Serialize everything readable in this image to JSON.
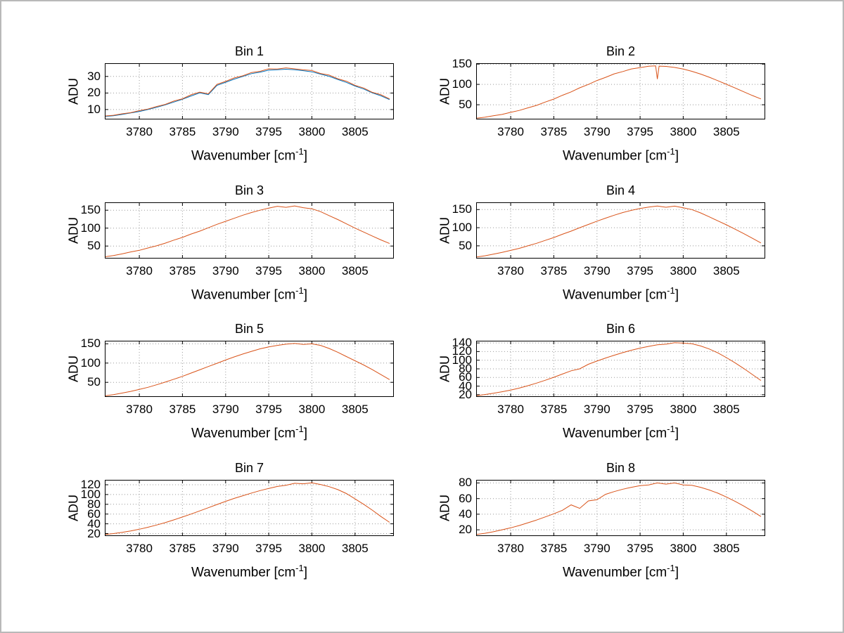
{
  "figure": {
    "background": "#ffffff",
    "border_color": "#b9b9b9"
  },
  "chart_data": [
    {
      "type": "line",
      "title": "Bin 1",
      "ylabel": "ADU",
      "xlabel_pre": "Wavenumber [cm",
      "xlabel_sup": "-1",
      "xlabel_post": "]",
      "xlim": [
        3776,
        3809.5
      ],
      "ylim": [
        4,
        38
      ],
      "x_ticks": [
        3780,
        3785,
        3790,
        3795,
        3800,
        3805
      ],
      "y_ticks": [
        10,
        20,
        30
      ],
      "grid": true,
      "legend": "none",
      "x": [
        3776,
        3777,
        3778,
        3779,
        3780,
        3781,
        3782,
        3783,
        3784,
        3785,
        3786,
        3787,
        3788,
        3789,
        3790,
        3791,
        3792,
        3793,
        3794,
        3795,
        3796,
        3797,
        3798,
        3799,
        3800,
        3801,
        3802,
        3803,
        3804,
        3805,
        3806,
        3807,
        3808,
        3809
      ],
      "series": [
        {
          "name": "line-1",
          "color": "#0072BD",
          "y": [
            5.8,
            6.2,
            7.0,
            7.9,
            8.8,
            10.0,
            11.3,
            12.8,
            14.5,
            16.2,
            18.2,
            20.1,
            19.0,
            24.6,
            26.5,
            28.4,
            30.0,
            31.7,
            32.6,
            33.8,
            34.1,
            34.4,
            34.1,
            33.5,
            32.8,
            31.4,
            30.1,
            28.2,
            26.4,
            24.2,
            22.4,
            20.1,
            18.3,
            16.0
          ]
        },
        {
          "name": "line-2",
          "color": "#D95319",
          "y": [
            6.1,
            6.5,
            7.4,
            8.1,
            9.3,
            10.3,
            11.8,
            13.1,
            15.1,
            16.5,
            18.9,
            20.5,
            19.5,
            25.2,
            27.0,
            29.1,
            30.4,
            32.4,
            33.1,
            34.6,
            34.5,
            35.2,
            34.6,
            34.0,
            33.6,
            31.8,
            30.8,
            28.6,
            27.1,
            24.6,
            23.0,
            20.4,
            18.9,
            16.4
          ]
        }
      ]
    },
    {
      "type": "line",
      "title": "Bin 2",
      "ylabel": "ADU",
      "xlabel_pre": "Wavenumber [cm",
      "xlabel_sup": "-1",
      "xlabel_post": "]",
      "xlim": [
        3776,
        3809.5
      ],
      "ylim": [
        14,
        152
      ],
      "x_ticks": [
        3780,
        3785,
        3790,
        3795,
        3800,
        3805
      ],
      "y_ticks": [
        50,
        100,
        150
      ],
      "grid": true,
      "legend": "none",
      "x": [
        3776,
        3777,
        3778,
        3779,
        3780,
        3781,
        3782,
        3783,
        3784,
        3785,
        3786,
        3787,
        3788,
        3789,
        3790,
        3791,
        3792,
        3793,
        3794,
        3795,
        3796,
        3796.8,
        3797,
        3797.2,
        3798,
        3799,
        3800,
        3801,
        3802,
        3803,
        3804,
        3805,
        3806,
        3807,
        3808,
        3809
      ],
      "series": [
        {
          "name": "line-1",
          "color": "#D95319",
          "y": [
            17,
            19.4,
            23.1,
            26.2,
            31.4,
            36,
            42.5,
            48.5,
            56.6,
            64,
            73.3,
            81.6,
            91.6,
            99.9,
            109.6,
            117.3,
            125.9,
            131.7,
            138.1,
            141.2,
            144.6,
            145.5,
            113,
            145,
            144.2,
            141.7,
            137.6,
            132.1,
            125.4,
            117.7,
            109.2,
            100.3,
            91.2,
            82,
            72.9,
            64.3
          ]
        }
      ]
    },
    {
      "type": "line",
      "title": "Bin 3",
      "ylabel": "ADU",
      "xlabel_pre": "Wavenumber [cm",
      "xlabel_sup": "-1",
      "xlabel_post": "]",
      "xlim": [
        3776,
        3809.5
      ],
      "ylim": [
        15,
        172
      ],
      "x_ticks": [
        3780,
        3785,
        3790,
        3795,
        3800,
        3805
      ],
      "y_ticks": [
        50,
        100,
        150
      ],
      "grid": true,
      "legend": "none",
      "x": [
        3776,
        3777,
        3778,
        3779,
        3780,
        3781,
        3782,
        3783,
        3784,
        3785,
        3786,
        3787,
        3788,
        3789,
        3790,
        3791,
        3792,
        3793,
        3794,
        3795,
        3796,
        3797,
        3798,
        3799,
        3800,
        3801,
        3802,
        3803,
        3804,
        3805,
        3806,
        3807,
        3808,
        3809
      ],
      "series": [
        {
          "name": "line-1",
          "color": "#D95319",
          "y": [
            20,
            23.5,
            28,
            33.5,
            38,
            44.5,
            50.5,
            58,
            66.5,
            74,
            83.5,
            91.5,
            101,
            110.5,
            119,
            127.5,
            136,
            143.5,
            150,
            156,
            161,
            158,
            162,
            157,
            154,
            146,
            135,
            124,
            112,
            100,
            89,
            78,
            67,
            57
          ]
        }
      ]
    },
    {
      "type": "line",
      "title": "Bin 4",
      "ylabel": "ADU",
      "xlabel_pre": "Wavenumber [cm",
      "xlabel_sup": "-1",
      "xlabel_post": "]",
      "xlim": [
        3776,
        3809.5
      ],
      "ylim": [
        15,
        170
      ],
      "x_ticks": [
        3780,
        3785,
        3790,
        3795,
        3800,
        3805
      ],
      "y_ticks": [
        50,
        100,
        150
      ],
      "grid": true,
      "legend": "none",
      "x": [
        3776,
        3777,
        3778,
        3779,
        3780,
        3781,
        3782,
        3783,
        3784,
        3785,
        3786,
        3787,
        3788,
        3789,
        3790,
        3791,
        3792,
        3793,
        3794,
        3795,
        3796,
        3797,
        3798,
        3799,
        3800,
        3801,
        3802,
        3803,
        3804,
        3805,
        3806,
        3807,
        3808,
        3809
      ],
      "series": [
        {
          "name": "line-1",
          "color": "#D95319",
          "y": [
            19,
            22.5,
            27,
            32,
            37.5,
            43,
            50,
            57,
            65,
            73,
            82,
            90.5,
            100,
            109,
            118,
            126.5,
            134.5,
            142,
            148,
            153,
            157,
            160,
            156.5,
            159.5,
            155,
            150,
            141,
            130,
            119,
            108,
            96,
            84,
            71,
            58
          ]
        }
      ]
    },
    {
      "type": "line",
      "title": "Bin 5",
      "ylabel": "ADU",
      "xlabel_pre": "Wavenumber [cm",
      "xlabel_sup": "-1",
      "xlabel_post": "]",
      "xlim": [
        3776,
        3809.5
      ],
      "ylim": [
        12,
        158
      ],
      "x_ticks": [
        3780,
        3785,
        3790,
        3795,
        3800,
        3805
      ],
      "y_ticks": [
        50,
        100,
        150
      ],
      "grid": true,
      "legend": "none",
      "x": [
        3776,
        3777,
        3778,
        3779,
        3780,
        3781,
        3782,
        3783,
        3784,
        3785,
        3786,
        3787,
        3788,
        3789,
        3790,
        3791,
        3792,
        3793,
        3794,
        3795,
        3796,
        3797,
        3798,
        3799,
        3800,
        3801,
        3802,
        3803,
        3804,
        3805,
        3806,
        3807,
        3808,
        3809
      ],
      "series": [
        {
          "name": "line-1",
          "color": "#D95319",
          "y": [
            15,
            18,
            22,
            26.5,
            31.5,
            37,
            43.5,
            50.5,
            58,
            65.5,
            74,
            82.5,
            91,
            99.5,
            108,
            116,
            123.5,
            130.5,
            137,
            142,
            146,
            149,
            151,
            148.5,
            150,
            146,
            138,
            128,
            117,
            106,
            95,
            83,
            70,
            57
          ]
        }
      ]
    },
    {
      "type": "line",
      "title": "Bin 6",
      "ylabel": "ADU",
      "xlabel_pre": "Wavenumber [cm",
      "xlabel_sup": "-1",
      "xlabel_post": "]",
      "xlim": [
        3776,
        3809.5
      ],
      "ylim": [
        15,
        145
      ],
      "x_ticks": [
        3780,
        3785,
        3790,
        3795,
        3800,
        3805
      ],
      "y_ticks": [
        20,
        40,
        60,
        80,
        100,
        120,
        140
      ],
      "grid": true,
      "legend": "none",
      "x": [
        3776,
        3777,
        3778,
        3779,
        3780,
        3781,
        3782,
        3783,
        3784,
        3785,
        3786,
        3787,
        3788,
        3789,
        3790,
        3791,
        3792,
        3793,
        3794,
        3795,
        3796,
        3797,
        3798,
        3799,
        3800,
        3801,
        3802,
        3803,
        3804,
        3805,
        3806,
        3807,
        3808,
        3809
      ],
      "series": [
        {
          "name": "line-1",
          "color": "#D95319",
          "y": [
            18,
            20.5,
            23.5,
            27,
            31,
            35.5,
            41,
            47,
            53.5,
            60.5,
            68,
            75.5,
            80,
            90.5,
            98,
            105,
            111.5,
            117.5,
            123,
            128,
            132,
            135.5,
            137,
            140.5,
            139.5,
            138,
            133,
            126,
            117,
            106,
            94,
            81,
            67,
            53
          ]
        }
      ]
    },
    {
      "type": "line",
      "title": "Bin 7",
      "ylabel": "ADU",
      "xlabel_pre": "Wavenumber [cm",
      "xlabel_sup": "-1",
      "xlabel_post": "]",
      "xlim": [
        3776,
        3809.5
      ],
      "ylim": [
        15,
        130
      ],
      "x_ticks": [
        3780,
        3785,
        3790,
        3795,
        3800,
        3805
      ],
      "y_ticks": [
        20,
        40,
        60,
        80,
        100,
        120
      ],
      "grid": true,
      "legend": "none",
      "x": [
        3776,
        3777,
        3778,
        3779,
        3780,
        3781,
        3782,
        3783,
        3784,
        3785,
        3786,
        3787,
        3788,
        3789,
        3790,
        3791,
        3792,
        3793,
        3794,
        3795,
        3796,
        3797,
        3798,
        3799,
        3800,
        3801,
        3802,
        3803,
        3804,
        3805,
        3806,
        3807,
        3808,
        3809
      ],
      "series": [
        {
          "name": "line-1",
          "color": "#D95319",
          "y": [
            18,
            20,
            22.5,
            25.5,
            29,
            33,
            37.5,
            42.5,
            48,
            54,
            60,
            66.5,
            73,
            79.5,
            86,
            92,
            97.5,
            103,
            108,
            112.5,
            116.5,
            119,
            123,
            122,
            124,
            120.5,
            116,
            110,
            102,
            91,
            80,
            68,
            55,
            43
          ]
        }
      ]
    },
    {
      "type": "line",
      "title": "Bin 8",
      "ylabel": "ADU",
      "xlabel_pre": "Wavenumber [cm",
      "xlabel_sup": "-1",
      "xlabel_post": "]",
      "xlim": [
        3776,
        3809.5
      ],
      "ylim": [
        12,
        84
      ],
      "x_ticks": [
        3780,
        3785,
        3790,
        3795,
        3800,
        3805
      ],
      "y_ticks": [
        20,
        40,
        60,
        80
      ],
      "grid": true,
      "legend": "none",
      "x": [
        3776,
        3777,
        3778,
        3779,
        3780,
        3781,
        3782,
        3783,
        3784,
        3785,
        3786,
        3787,
        3788,
        3789,
        3790,
        3791,
        3792,
        3793,
        3794,
        3795,
        3796,
        3797,
        3798,
        3799,
        3800,
        3801,
        3802,
        3803,
        3804,
        3805,
        3806,
        3807,
        3808,
        3809
      ],
      "series": [
        {
          "name": "line-1",
          "color": "#D95319",
          "y": [
            14,
            15.5,
            17.5,
            20,
            22.5,
            25.5,
            29,
            32.5,
            36.5,
            40.5,
            45,
            52,
            47.5,
            57,
            58.5,
            65.5,
            69,
            72,
            74.5,
            76.5,
            77.5,
            80,
            78.5,
            80,
            77.5,
            77,
            74.5,
            71,
            67,
            62,
            56.5,
            50.5,
            44,
            37
          ]
        }
      ]
    }
  ]
}
